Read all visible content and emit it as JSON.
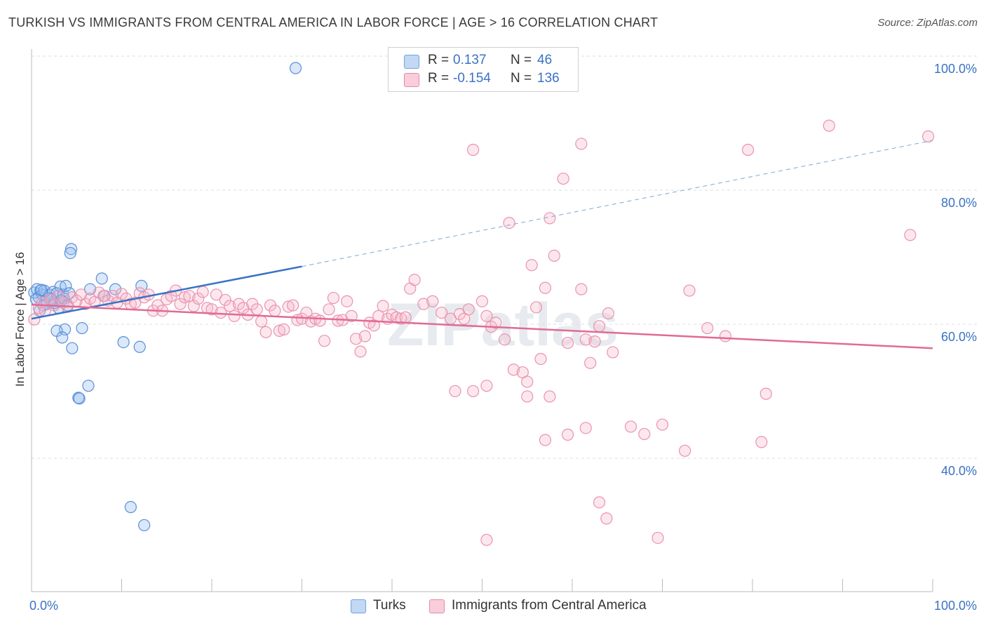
{
  "title": "TURKISH VS IMMIGRANTS FROM CENTRAL AMERICA IN LABOR FORCE | AGE > 16 CORRELATION CHART",
  "source": "Source: ZipAtlas.com",
  "watermark": "ZIPatlas",
  "legend": {
    "r_label": "R =",
    "n_label": "N =",
    "rows": [
      {
        "name": "Turks",
        "r": "0.137",
        "n": "46",
        "color": "#a9c8f0",
        "stroke": "#5a8fd6"
      },
      {
        "name": "Immigrants from Central America",
        "r": "-0.154",
        "n": "136",
        "color": "#f7b9cc",
        "stroke": "#e58aa8"
      }
    ]
  },
  "chart_data": {
    "type": "scatter",
    "xlabel": "",
    "ylabel": "In Labor Force | Age > 16",
    "xlim": [
      0,
      100
    ],
    "ylim": [
      20,
      101
    ],
    "x_tick_labels": [
      "0.0%",
      "100.0%"
    ],
    "y_ticks": [
      40,
      60,
      80,
      100
    ],
    "y_tick_labels": [
      "40.0%",
      "60.0%",
      "80.0%",
      "100.0%"
    ],
    "grid": "horizontal dashed",
    "legend_position": "top-center and bottom",
    "series": [
      {
        "name": "Turks",
        "color": "#6fa3e3",
        "trend": {
          "x": [
            0,
            30
          ],
          "y": [
            62.6,
            70.4
          ],
          "extended_to": [
            100,
            89.2
          ]
        },
        "points": [
          [
            0.3,
            66.5
          ],
          [
            0.6,
            67.0
          ],
          [
            0.8,
            65.8
          ],
          [
            1.0,
            66.8
          ],
          [
            1.2,
            66.2
          ],
          [
            1.4,
            66.8
          ],
          [
            1.5,
            65.1
          ],
          [
            1.7,
            64.8
          ],
          [
            2.0,
            66.2
          ],
          [
            2.2,
            65.4
          ],
          [
            2.4,
            66.6
          ],
          [
            2.6,
            65.0
          ],
          [
            2.8,
            66.4
          ],
          [
            3.0,
            64.2
          ],
          [
            3.1,
            65.2
          ],
          [
            3.2,
            67.4
          ],
          [
            3.5,
            66.2
          ],
          [
            3.6,
            65.6
          ],
          [
            3.8,
            67.5
          ],
          [
            4.0,
            64.6
          ],
          [
            1.3,
            64.6
          ],
          [
            2.5,
            64.9
          ],
          [
            3.3,
            65.3
          ],
          [
            4.2,
            66.4
          ],
          [
            0.9,
            63.8
          ],
          [
            0.5,
            65.5
          ],
          [
            1.1,
            66.9
          ],
          [
            2.1,
            65.6
          ],
          [
            4.4,
            73.0
          ],
          [
            4.3,
            72.4
          ],
          [
            7.8,
            68.6
          ],
          [
            6.5,
            67.0
          ],
          [
            9.3,
            67.0
          ],
          [
            12.2,
            67.5
          ],
          [
            8.1,
            66.0
          ],
          [
            3.7,
            61.0
          ],
          [
            5.6,
            61.2
          ],
          [
            2.8,
            60.8
          ],
          [
            3.4,
            59.8
          ],
          [
            10.2,
            59.1
          ],
          [
            12.0,
            58.4
          ],
          [
            4.5,
            58.2
          ],
          [
            6.3,
            52.6
          ],
          [
            5.2,
            50.8
          ],
          [
            5.3,
            50.7
          ],
          [
            11.0,
            34.5
          ],
          [
            12.5,
            31.8
          ],
          [
            29.3,
            100.0
          ]
        ]
      },
      {
        "name": "Immigrants from Central America",
        "color": "#f3a7be",
        "trend": {
          "x": [
            0,
            100
          ],
          "y": [
            64.7,
            58.2
          ]
        },
        "points": [
          [
            0.3,
            62.5
          ],
          [
            0.8,
            64.2
          ],
          [
            1.2,
            65.0
          ],
          [
            1.5,
            63.8
          ],
          [
            2.0,
            65.5
          ],
          [
            2.5,
            64.6
          ],
          [
            3.0,
            66.0
          ],
          [
            3.5,
            65.0
          ],
          [
            4.0,
            64.4
          ],
          [
            4.5,
            65.8
          ],
          [
            5.0,
            65.3
          ],
          [
            5.5,
            66.2
          ],
          [
            6.0,
            64.8
          ],
          [
            6.5,
            65.6
          ],
          [
            7.0,
            65.1
          ],
          [
            7.5,
            66.5
          ],
          [
            8.0,
            66.0
          ],
          [
            8.5,
            65.3
          ],
          [
            9.0,
            66.0
          ],
          [
            9.5,
            65.0
          ],
          [
            10.0,
            66.3
          ],
          [
            10.5,
            65.6
          ],
          [
            11.0,
            64.8
          ],
          [
            11.5,
            65.0
          ],
          [
            12.0,
            66.4
          ],
          [
            12.5,
            65.8
          ],
          [
            13.0,
            66.2
          ],
          [
            13.5,
            63.8
          ],
          [
            14.0,
            64.6
          ],
          [
            14.5,
            63.8
          ],
          [
            15.0,
            65.5
          ],
          [
            15.5,
            66.0
          ],
          [
            16.0,
            66.8
          ],
          [
            16.5,
            64.8
          ],
          [
            17.0,
            65.8
          ],
          [
            17.5,
            66.0
          ],
          [
            18.0,
            64.5
          ],
          [
            18.5,
            65.6
          ],
          [
            19.0,
            66.6
          ],
          [
            19.5,
            64.2
          ],
          [
            20.0,
            64.0
          ],
          [
            20.5,
            66.2
          ],
          [
            21.0,
            63.5
          ],
          [
            21.5,
            65.4
          ],
          [
            22.0,
            64.5
          ],
          [
            22.5,
            63.0
          ],
          [
            23.0,
            64.8
          ],
          [
            23.5,
            64.2
          ],
          [
            24.0,
            63.2
          ],
          [
            24.5,
            64.8
          ],
          [
            25.0,
            64.0
          ],
          [
            25.5,
            62.2
          ],
          [
            26.0,
            60.6
          ],
          [
            26.5,
            64.6
          ],
          [
            27.0,
            63.8
          ],
          [
            27.5,
            60.8
          ],
          [
            28.0,
            61.0
          ],
          [
            28.5,
            64.4
          ],
          [
            29.0,
            64.6
          ],
          [
            29.5,
            62.4
          ],
          [
            30.0,
            62.6
          ],
          [
            30.5,
            63.5
          ],
          [
            31.0,
            62.2
          ],
          [
            31.5,
            62.6
          ],
          [
            32.0,
            62.3
          ],
          [
            32.5,
            59.3
          ],
          [
            33.0,
            64.0
          ],
          [
            33.5,
            65.7
          ],
          [
            34.0,
            62.3
          ],
          [
            34.5,
            62.4
          ],
          [
            35.0,
            65.2
          ],
          [
            35.5,
            63.0
          ],
          [
            36.0,
            59.6
          ],
          [
            36.5,
            57.7
          ],
          [
            37.0,
            60.0
          ],
          [
            37.5,
            62.0
          ],
          [
            38.0,
            61.6
          ],
          [
            38.5,
            63.0
          ],
          [
            39.0,
            64.5
          ],
          [
            39.5,
            62.6
          ],
          [
            40.0,
            63.2
          ],
          [
            40.5,
            62.8
          ],
          [
            41.0,
            62.6
          ],
          [
            41.5,
            62.8
          ],
          [
            42.0,
            67.1
          ],
          [
            42.5,
            68.4
          ],
          [
            43.5,
            64.8
          ],
          [
            44.5,
            65.2
          ],
          [
            45.5,
            63.5
          ],
          [
            46.5,
            62.6
          ],
          [
            47.5,
            63.3
          ],
          [
            48.0,
            62.6
          ],
          [
            48.5,
            64.0
          ],
          [
            50.0,
            65.2
          ],
          [
            50.5,
            63.0
          ],
          [
            51.0,
            61.4
          ],
          [
            47.0,
            51.8
          ],
          [
            49.0,
            51.8
          ],
          [
            50.5,
            52.6
          ],
          [
            51.5,
            62.0
          ],
          [
            52.5,
            59.5
          ],
          [
            53.5,
            55.0
          ],
          [
            54.5,
            54.6
          ],
          [
            55.0,
            53.2
          ],
          [
            56.0,
            64.3
          ],
          [
            56.5,
            56.6
          ],
          [
            57.0,
            67.2
          ],
          [
            58.0,
            72.0
          ],
          [
            59.5,
            59.0
          ],
          [
            61.0,
            67.0
          ],
          [
            61.5,
            59.5
          ],
          [
            62.5,
            59.2
          ],
          [
            63.0,
            61.5
          ],
          [
            64.0,
            63.4
          ],
          [
            66.5,
            46.5
          ],
          [
            68.0,
            45.4
          ],
          [
            70.0,
            46.8
          ],
          [
            62.0,
            56.0
          ],
          [
            63.0,
            35.2
          ],
          [
            63.8,
            32.8
          ],
          [
            69.5,
            29.9
          ],
          [
            57.0,
            44.5
          ],
          [
            59.5,
            45.3
          ],
          [
            61.5,
            46.3
          ],
          [
            50.5,
            29.6
          ],
          [
            55.0,
            51.0
          ],
          [
            57.5,
            51.0
          ],
          [
            55.5,
            70.6
          ],
          [
            57.5,
            77.6
          ],
          [
            49.0,
            87.8
          ],
          [
            59.0,
            83.5
          ],
          [
            61.0,
            88.7
          ],
          [
            64.5,
            57.6
          ],
          [
            72.5,
            42.9
          ],
          [
            73.0,
            66.8
          ],
          [
            75.0,
            61.2
          ],
          [
            77.0,
            60.0
          ],
          [
            81.0,
            44.2
          ],
          [
            81.5,
            51.4
          ],
          [
            79.5,
            87.8
          ],
          [
            88.5,
            91.4
          ],
          [
            97.5,
            75.1
          ],
          [
            99.5,
            89.8
          ],
          [
            53.0,
            76.9
          ]
        ]
      }
    ]
  }
}
